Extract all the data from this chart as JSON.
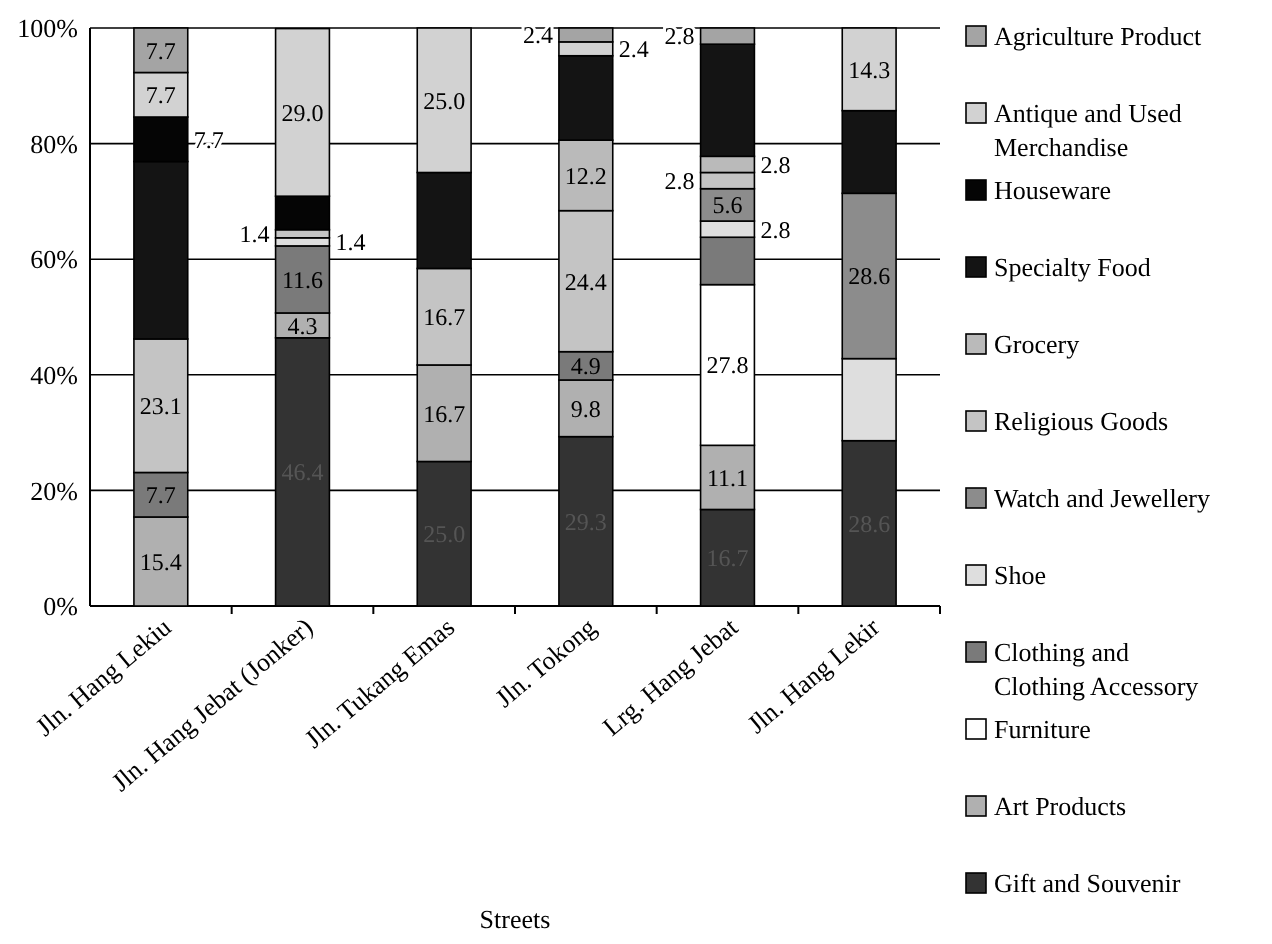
{
  "chart_data": {
    "type": "bar",
    "stacked": true,
    "xlabel": "Streets",
    "categories": [
      "Jln. Hang Lekiu",
      "Jln. Hang Jebat (Jonker)",
      "Jln. Tukang Emas",
      "Jln. Tokong",
      "Lrg. Hang Jebat",
      "Jln. Hang Lekir"
    ],
    "ylim": [
      0,
      100
    ],
    "yticks": [
      {
        "value": 0,
        "label": "0%"
      },
      {
        "value": 20,
        "label": "20%"
      },
      {
        "value": 40,
        "label": "40%"
      },
      {
        "value": 60,
        "label": "60%"
      },
      {
        "value": 80,
        "label": "80%"
      },
      {
        "value": 100,
        "label": "100%"
      }
    ],
    "grid": "y",
    "legend": "right",
    "series": [
      {
        "name": "Gift and Souvenir",
        "color": "#333333",
        "values": [
          0,
          46.4,
          25.0,
          29.3,
          16.7,
          28.6
        ],
        "value_labels": [
          null,
          "46.4",
          "25.0",
          "29.3",
          "16.7",
          "28.6"
        ]
      },
      {
        "name": "Art Products",
        "color": "#b0b0b0",
        "values": [
          15.4,
          4.3,
          16.7,
          9.8,
          11.1,
          0
        ],
        "value_labels": [
          "15.4",
          "4.3",
          "16.7",
          "9.8",
          "11.1",
          null
        ]
      },
      {
        "name": "Furniture",
        "color": "#ffffff",
        "values": [
          0,
          0,
          0,
          0,
          27.8,
          0
        ],
        "value_labels": [
          null,
          null,
          null,
          null,
          "27.8",
          null
        ]
      },
      {
        "name": "Clothing and Clothing Accessory",
        "color": "#7a7a7a",
        "values": [
          7.7,
          11.6,
          0,
          4.9,
          8.2,
          0
        ],
        "value_labels": [
          "7.7",
          "11.6",
          null,
          "4.9",
          null,
          null
        ]
      },
      {
        "name": "Shoe",
        "color": "#dedede",
        "values": [
          0,
          1.4,
          0,
          0,
          2.8,
          14.2
        ],
        "value_labels": [
          null,
          "1.4",
          null,
          null,
          "2.8",
          null
        ]
      },
      {
        "name": "Watch and Jewellery",
        "color": "#8c8c8c",
        "values": [
          0,
          0,
          0,
          0,
          5.6,
          28.6
        ],
        "value_labels": [
          null,
          null,
          null,
          null,
          "5.6",
          "28.6"
        ]
      },
      {
        "name": "Religious Goods",
        "color": "#c4c4c4",
        "values": [
          23.1,
          1.4,
          16.7,
          24.4,
          2.8,
          0
        ],
        "value_labels": [
          "23.1",
          "1.4",
          "16.7",
          "24.4",
          "2.8",
          null
        ]
      },
      {
        "name": "Grocery",
        "color": "#bababa",
        "values": [
          0,
          0,
          0,
          12.2,
          2.8,
          0
        ],
        "value_labels": [
          null,
          null,
          null,
          "12.2",
          "2.8",
          null
        ]
      },
      {
        "name": "Specialty Food",
        "color": "#141414",
        "values": [
          30.7,
          0,
          16.6,
          14.6,
          19.4,
          14.3
        ]
      },
      {
        "name": "Houseware",
        "color": "#050505",
        "values": [
          7.7,
          5.8,
          0,
          0,
          0,
          0
        ],
        "value_labels": [
          "7.7",
          null,
          null,
          null,
          null,
          null
        ]
      },
      {
        "name": "Antique and Used Merchandise",
        "color": "#d2d2d2",
        "values": [
          7.7,
          29.0,
          25.0,
          2.4,
          0,
          14.3
        ],
        "value_labels": [
          "7.7",
          "29.0",
          "25.0",
          "2.4",
          null,
          "14.3"
        ]
      },
      {
        "name": "Agriculture Product",
        "color": "#a4a4a4",
        "values": [
          7.7,
          0,
          0,
          2.4,
          2.8,
          0
        ],
        "value_labels": [
          "7.7",
          null,
          null,
          "2.4",
          "2.8",
          null
        ]
      }
    ]
  }
}
